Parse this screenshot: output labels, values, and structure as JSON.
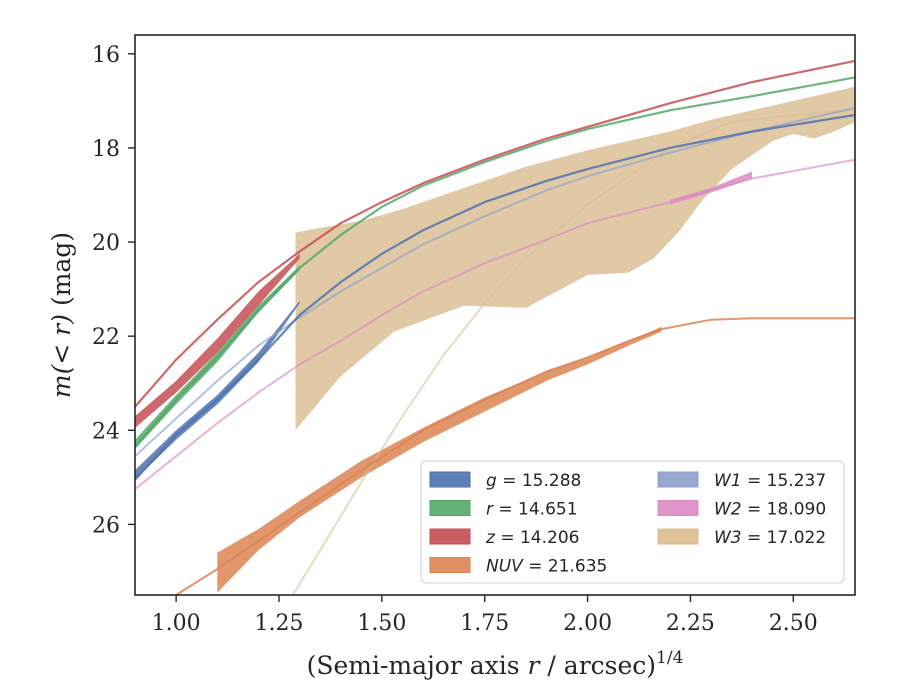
{
  "chart_data": {
    "type": "line",
    "xlabel_prefix": "(Semi-major axis ",
    "xlabel_var": "r",
    "xlabel_suffix": " / arcsec)",
    "xlabel_exp": "1/4",
    "ylabel_prefix": "m",
    "ylabel_math": "(< r)",
    "ylabel_suffix": " (mag)",
    "xlim": [
      0.9,
      2.65
    ],
    "ylim": [
      27.5,
      15.6
    ],
    "y_inverted": true,
    "xticks": [
      1.0,
      1.25,
      1.5,
      1.75,
      2.0,
      2.25,
      2.5
    ],
    "xtick_labels": [
      "1.00",
      "1.25",
      "1.50",
      "1.75",
      "2.00",
      "2.25",
      "2.50"
    ],
    "yticks": [
      16,
      18,
      20,
      22,
      24,
      26
    ],
    "ytick_labels": [
      "16",
      "18",
      "20",
      "22",
      "24",
      "26"
    ],
    "grid": false,
    "legend_position": "lower-right",
    "series": [
      {
        "name": "g",
        "value": "15.288",
        "color": "#4c72b0",
        "model": [
          [
            0.9,
            25.05
          ],
          [
            1.0,
            24.1
          ],
          [
            1.1,
            23.35
          ],
          [
            1.2,
            22.5
          ],
          [
            1.3,
            21.55
          ],
          [
            1.4,
            20.85
          ],
          [
            1.5,
            20.25
          ],
          [
            1.6,
            19.75
          ],
          [
            1.75,
            19.15
          ],
          [
            1.9,
            18.7
          ],
          [
            2.0,
            18.45
          ],
          [
            2.2,
            18.0
          ],
          [
            2.4,
            17.65
          ],
          [
            2.65,
            17.3
          ]
        ],
        "band_upper": [
          [
            0.9,
            24.85
          ],
          [
            1.0,
            24.0
          ],
          [
            1.1,
            23.25
          ],
          [
            1.2,
            22.35
          ],
          [
            1.3,
            21.25
          ]
        ],
        "band_lower": [
          [
            0.9,
            25.05
          ],
          [
            1.0,
            24.2
          ],
          [
            1.1,
            23.45
          ],
          [
            1.2,
            22.55
          ],
          [
            1.3,
            21.3
          ]
        ]
      },
      {
        "name": "r",
        "value": "14.651",
        "color": "#55a868",
        "model": [
          [
            0.9,
            24.35
          ],
          [
            1.0,
            23.35
          ],
          [
            1.1,
            22.45
          ],
          [
            1.2,
            21.45
          ],
          [
            1.3,
            20.55
          ],
          [
            1.4,
            19.85
          ],
          [
            1.5,
            19.25
          ],
          [
            1.6,
            18.8
          ],
          [
            1.75,
            18.3
          ],
          [
            1.9,
            17.85
          ],
          [
            2.0,
            17.6
          ],
          [
            2.2,
            17.2
          ],
          [
            2.4,
            16.9
          ],
          [
            2.65,
            16.5
          ]
        ],
        "band_upper": [
          [
            0.9,
            24.2
          ],
          [
            1.0,
            23.25
          ],
          [
            1.1,
            22.35
          ],
          [
            1.2,
            21.35
          ],
          [
            1.3,
            20.5
          ]
        ],
        "band_lower": [
          [
            0.9,
            24.4
          ],
          [
            1.0,
            23.45
          ],
          [
            1.1,
            22.55
          ],
          [
            1.2,
            21.5
          ],
          [
            1.3,
            20.6
          ]
        ]
      },
      {
        "name": "z",
        "value": "14.206",
        "color": "#c44e52",
        "model": [
          [
            0.9,
            23.5
          ],
          [
            1.0,
            22.5
          ],
          [
            1.1,
            21.65
          ],
          [
            1.2,
            20.85
          ],
          [
            1.3,
            20.2
          ],
          [
            1.4,
            19.6
          ],
          [
            1.5,
            19.15
          ],
          [
            1.6,
            18.75
          ],
          [
            1.75,
            18.25
          ],
          [
            1.9,
            17.8
          ],
          [
            2.0,
            17.55
          ],
          [
            2.2,
            17.05
          ],
          [
            2.4,
            16.6
          ],
          [
            2.65,
            16.15
          ]
        ],
        "band_upper": [
          [
            0.9,
            23.7
          ],
          [
            1.0,
            22.95
          ],
          [
            1.1,
            22.05
          ],
          [
            1.2,
            21.05
          ],
          [
            1.3,
            20.25
          ]
        ],
        "band_lower": [
          [
            0.9,
            23.95
          ],
          [
            1.0,
            23.2
          ],
          [
            1.1,
            22.35
          ],
          [
            1.2,
            21.35
          ],
          [
            1.3,
            20.35
          ]
        ]
      },
      {
        "name": "NUV",
        "value": "21.635",
        "color": "#dd8452",
        "model": [
          [
            1.0,
            27.5
          ],
          [
            1.1,
            26.95
          ],
          [
            1.2,
            26.35
          ],
          [
            1.3,
            25.75
          ],
          [
            1.45,
            24.85
          ],
          [
            1.6,
            24.0
          ],
          [
            1.75,
            23.35
          ],
          [
            1.9,
            22.75
          ],
          [
            2.0,
            22.45
          ],
          [
            2.1,
            22.1
          ],
          [
            2.18,
            21.85
          ],
          [
            2.3,
            21.65
          ],
          [
            2.4,
            21.62
          ],
          [
            2.65,
            21.62
          ]
        ],
        "band_upper": [
          [
            1.1,
            26.6
          ],
          [
            1.2,
            26.1
          ],
          [
            1.3,
            25.5
          ],
          [
            1.45,
            24.65
          ],
          [
            1.6,
            23.95
          ],
          [
            1.75,
            23.3
          ],
          [
            1.9,
            22.75
          ],
          [
            2.0,
            22.45
          ],
          [
            2.1,
            22.1
          ],
          [
            2.18,
            21.8
          ]
        ],
        "band_lower": [
          [
            1.1,
            27.45
          ],
          [
            1.2,
            26.55
          ],
          [
            1.3,
            25.85
          ],
          [
            1.45,
            25.0
          ],
          [
            1.6,
            24.25
          ],
          [
            1.75,
            23.6
          ],
          [
            1.9,
            22.95
          ],
          [
            2.0,
            22.6
          ],
          [
            2.1,
            22.2
          ],
          [
            2.18,
            21.9
          ]
        ]
      },
      {
        "name": "W1",
        "value": "15.237",
        "color": "#8c9fc9",
        "model": [
          [
            0.9,
            24.55
          ],
          [
            1.0,
            23.75
          ],
          [
            1.1,
            22.95
          ],
          [
            1.2,
            22.2
          ],
          [
            1.3,
            21.6
          ],
          [
            1.4,
            21.05
          ],
          [
            1.5,
            20.55
          ],
          [
            1.6,
            20.05
          ],
          [
            1.75,
            19.45
          ],
          [
            1.9,
            18.9
          ],
          [
            2.0,
            18.6
          ],
          [
            2.2,
            18.1
          ],
          [
            2.4,
            17.65
          ],
          [
            2.65,
            17.15
          ]
        ],
        "band_upper": [],
        "band_lower": []
      },
      {
        "name": "W2",
        "value": "18.090",
        "color": "#da8bc3",
        "model": [
          [
            0.9,
            25.25
          ],
          [
            1.0,
            24.55
          ],
          [
            1.1,
            23.85
          ],
          [
            1.2,
            23.2
          ],
          [
            1.3,
            22.6
          ],
          [
            1.4,
            22.1
          ],
          [
            1.5,
            21.55
          ],
          [
            1.6,
            21.05
          ],
          [
            1.75,
            20.45
          ],
          [
            1.9,
            19.95
          ],
          [
            2.0,
            19.6
          ],
          [
            2.2,
            19.15
          ],
          [
            2.4,
            18.65
          ],
          [
            2.65,
            18.25
          ]
        ],
        "band_upper": [
          [
            2.2,
            19.1
          ],
          [
            2.3,
            18.85
          ],
          [
            2.4,
            18.5
          ]
        ],
        "band_lower": [
          [
            2.2,
            19.2
          ],
          [
            2.3,
            18.95
          ],
          [
            2.4,
            18.65
          ]
        ]
      },
      {
        "name": "W3",
        "value": "17.022",
        "color": "#d9bb8f",
        "model": [
          [
            1.28,
            27.55
          ],
          [
            1.35,
            26.55
          ],
          [
            1.45,
            25.1
          ],
          [
            1.55,
            23.7
          ],
          [
            1.65,
            22.4
          ],
          [
            1.75,
            21.3
          ],
          [
            1.85,
            20.35
          ],
          [
            2.0,
            19.2
          ],
          [
            2.1,
            18.6
          ],
          [
            2.2,
            18.0
          ],
          [
            2.35,
            17.45
          ],
          [
            2.5,
            17.3
          ],
          [
            2.65,
            17.2
          ]
        ],
        "band_upper": [
          [
            1.29,
            19.8
          ],
          [
            1.35,
            19.7
          ],
          [
            1.45,
            19.55
          ],
          [
            1.55,
            19.3
          ],
          [
            1.7,
            18.85
          ],
          [
            1.85,
            18.4
          ],
          [
            2.0,
            18.05
          ],
          [
            2.1,
            17.85
          ],
          [
            2.2,
            17.65
          ],
          [
            2.3,
            17.4
          ],
          [
            2.4,
            17.2
          ],
          [
            2.5,
            17.0
          ],
          [
            2.6,
            16.8
          ],
          [
            2.65,
            16.7
          ]
        ],
        "band_lower": [
          [
            1.29,
            24.0
          ],
          [
            1.4,
            22.85
          ],
          [
            1.53,
            21.9
          ],
          [
            1.7,
            21.35
          ],
          [
            1.85,
            21.4
          ],
          [
            2.0,
            20.7
          ],
          [
            2.1,
            20.65
          ],
          [
            2.16,
            20.35
          ],
          [
            2.22,
            19.8
          ],
          [
            2.28,
            19.1
          ],
          [
            2.35,
            18.45
          ],
          [
            2.45,
            17.85
          ],
          [
            2.5,
            17.7
          ],
          [
            2.55,
            17.8
          ],
          [
            2.6,
            17.65
          ],
          [
            2.65,
            17.45
          ]
        ]
      }
    ]
  }
}
